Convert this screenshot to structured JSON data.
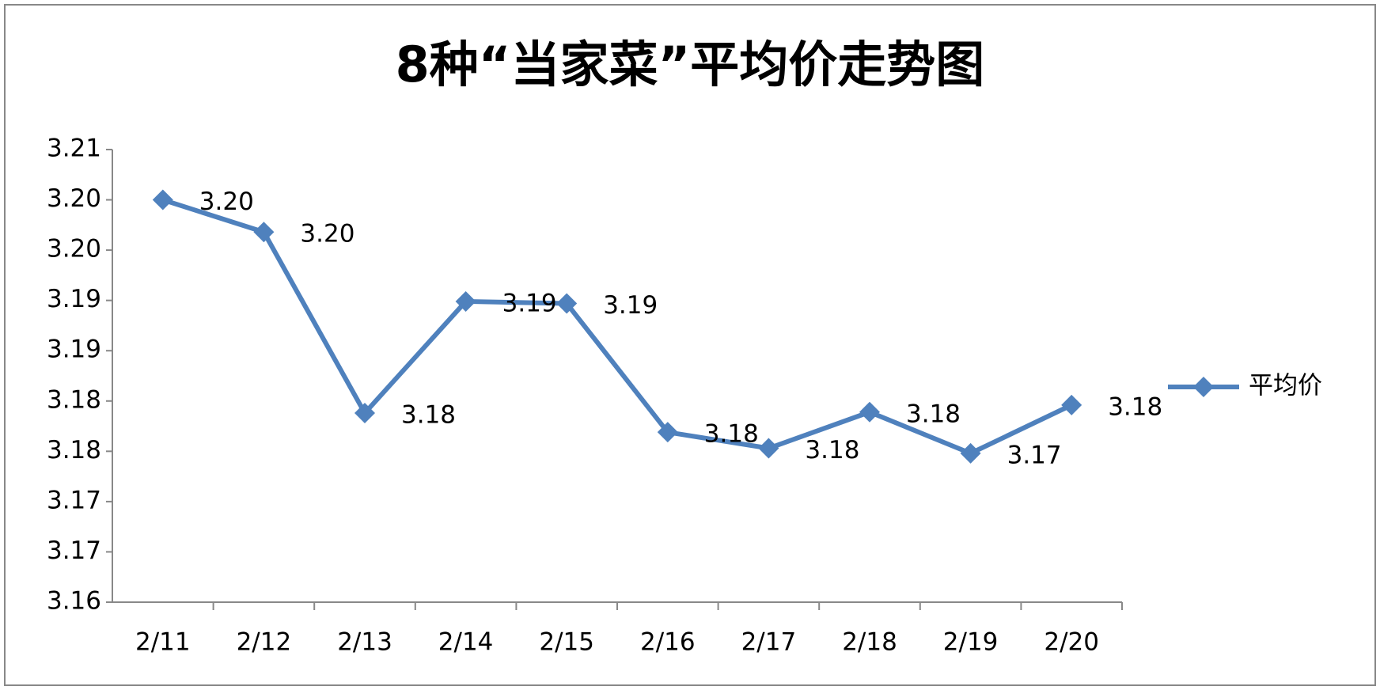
{
  "chart_data": {
    "type": "line",
    "title": "8种“当家菜”平均价走势图",
    "categories": [
      "2/11",
      "2/12",
      "2/13",
      "2/14",
      "2/15",
      "2/16",
      "2/17",
      "2/18",
      "2/19",
      "2/20"
    ],
    "series": [
      {
        "name": "平均价",
        "color": "#4f81bd",
        "values": [
          3.2,
          3.1968,
          3.1788,
          3.1899,
          3.1897,
          3.1769,
          3.1753,
          3.1789,
          3.1748,
          3.1796
        ],
        "value_labels": [
          "3.20",
          "3.20",
          "3.18",
          "3.19",
          "3.19",
          "3.18",
          "3.18",
          "3.18",
          "3.17",
          "3.18"
        ]
      }
    ],
    "ylim": [
      3.16,
      3.205
    ],
    "yticks": [
      3.16,
      {
        "value": 3.165,
        "label": "3.17"
      },
      3.17,
      {
        "value": 3.175,
        "label": "3.18"
      },
      3.18,
      {
        "value": 3.185,
        "label": "3.19"
      },
      3.19,
      {
        "value": 3.195,
        "label": "3.20"
      },
      {
        "value": 3.2,
        "label": "3.20"
      },
      {
        "value": 3.205,
        "label": "3.21"
      }
    ],
    "grid": false,
    "legend": "right"
  }
}
